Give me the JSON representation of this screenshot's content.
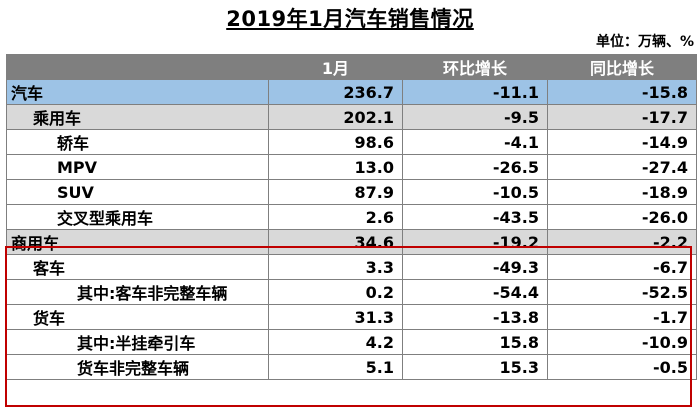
{
  "title": "2019年1月汽车销售情况",
  "unit_label": "单位：万辆、%",
  "columns": [
    "",
    "1月",
    "环比增长",
    "同比增长"
  ],
  "rows": [
    {
      "label": "汽车",
      "jan": "236.7",
      "mom": "-11.1",
      "yoy": "-15.8"
    },
    {
      "label": "乘用车",
      "jan": "202.1",
      "mom": "-9.5",
      "yoy": "-17.7"
    },
    {
      "label": "轿车",
      "jan": "98.6",
      "mom": "-4.1",
      "yoy": "-14.9"
    },
    {
      "label": "MPV",
      "jan": "13.0",
      "mom": "-26.5",
      "yoy": "-27.4"
    },
    {
      "label": "SUV",
      "jan": "87.9",
      "mom": "-10.5",
      "yoy": "-18.9"
    },
    {
      "label": "交叉型乘用车",
      "jan": "2.6",
      "mom": "-43.5",
      "yoy": "-26.0"
    },
    {
      "label": "商用车",
      "jan": "34.6",
      "mom": "-19.2",
      "yoy": "-2.2"
    },
    {
      "label": "客车",
      "jan": "3.3",
      "mom": "-49.3",
      "yoy": "-6.7"
    },
    {
      "label": "其中:客车非完整车辆",
      "jan": "0.2",
      "mom": "-54.4",
      "yoy": "-52.5"
    },
    {
      "label": "货车",
      "jan": "31.3",
      "mom": "-13.8",
      "yoy": "-1.7"
    },
    {
      "label": "其中:半挂牵引车",
      "jan": "4.2",
      "mom": "15.8",
      "yoy": "-10.9"
    },
    {
      "label": "货车非完整车辆",
      "jan": "5.1",
      "mom": "15.3",
      "yoy": "-0.5"
    }
  ],
  "colors": {
    "header_bg": "#7f7f7f",
    "total_row_bg": "#9dc3e6",
    "category_row_bg": "#d9d9d9",
    "highlight_border": "#c00000"
  }
}
